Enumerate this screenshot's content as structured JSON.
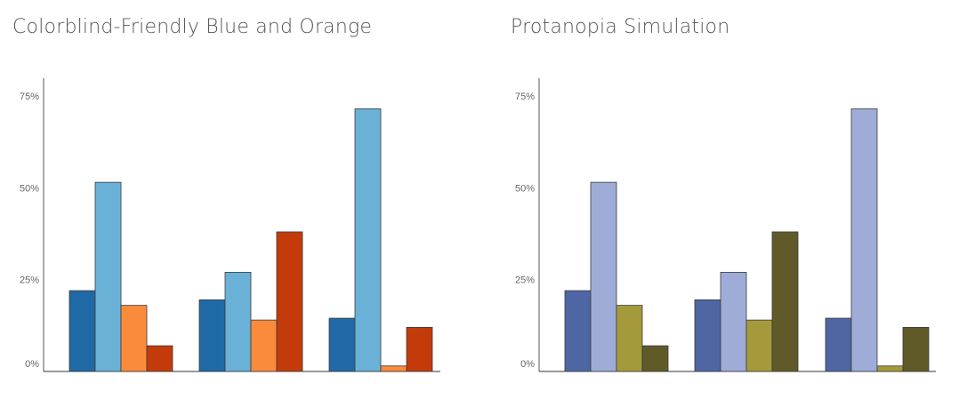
{
  "chart_data": [
    {
      "type": "bar",
      "title": "Colorblind-Friendly Blue and Orange",
      "xlabel": "",
      "ylabel": "",
      "ylim": [
        0,
        0.8
      ],
      "y_ticks": [
        "0%",
        "25%",
        "50%",
        "75%"
      ],
      "y_tick_values": [
        0,
        0.25,
        0.5,
        0.75
      ],
      "grid": false,
      "categories": [
        "",
        "",
        ""
      ],
      "series": [
        {
          "color": "#1f6aa6",
          "values": [
            0.22,
            0.195,
            0.145
          ]
        },
        {
          "color": "#6ab1d8",
          "values": [
            0.515,
            0.27,
            0.715
          ]
        },
        {
          "color": "#fb8b3c",
          "values": [
            0.18,
            0.14,
            0.015
          ]
        },
        {
          "color": "#c33b0a",
          "values": [
            0.07,
            0.38,
            0.12
          ]
        }
      ]
    },
    {
      "type": "bar",
      "title": "Protanopia Simulation",
      "xlabel": "",
      "ylabel": "",
      "ylim": [
        0,
        0.8
      ],
      "y_ticks": [
        "0%",
        "25%",
        "50%",
        "75%"
      ],
      "y_tick_values": [
        0,
        0.25,
        0.5,
        0.75
      ],
      "grid": false,
      "categories": [
        "",
        "",
        ""
      ],
      "series": [
        {
          "color": "#4e66a4",
          "values": [
            0.22,
            0.195,
            0.145
          ]
        },
        {
          "color": "#a0acd8",
          "values": [
            0.515,
            0.27,
            0.715
          ]
        },
        {
          "color": "#a49a3b",
          "values": [
            0.18,
            0.14,
            0.015
          ]
        },
        {
          "color": "#5f5a28",
          "values": [
            0.07,
            0.38,
            0.12
          ]
        }
      ]
    }
  ]
}
